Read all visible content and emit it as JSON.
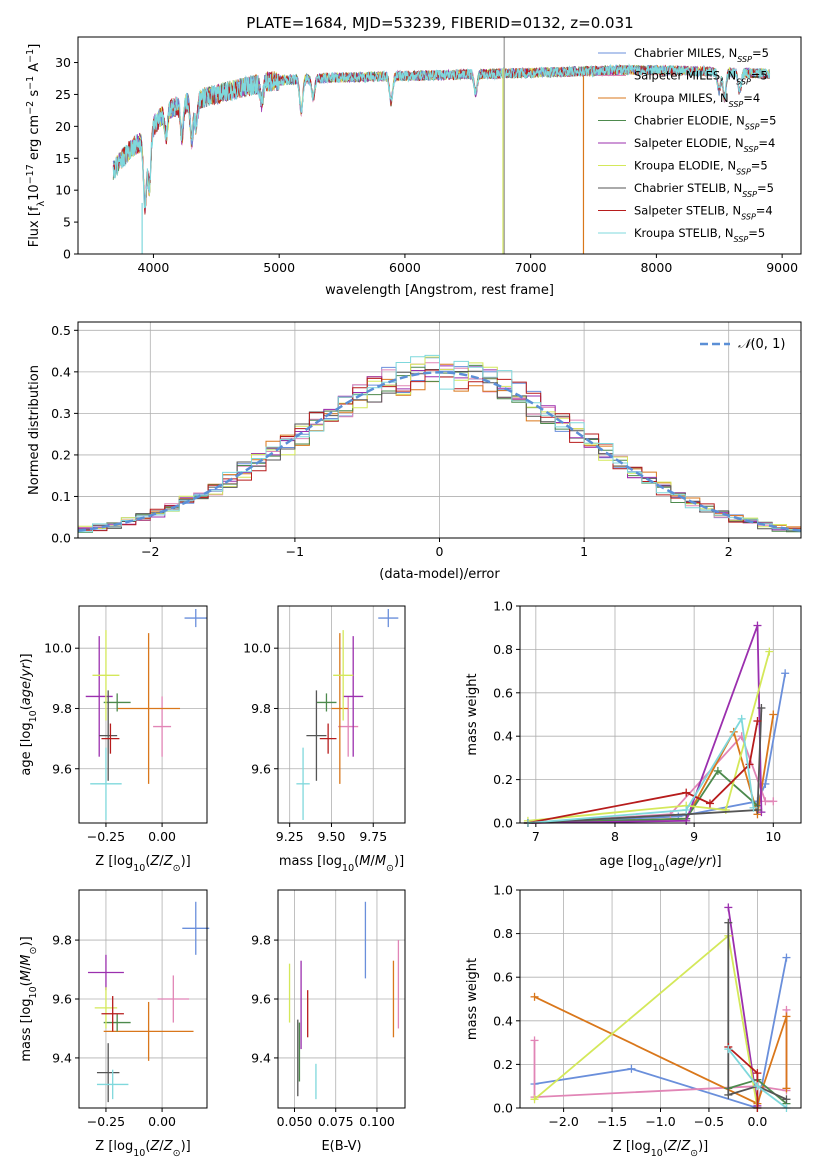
{
  "title": "PLATE=1684, MJD=53239, FIBERID=0132, z=0.031",
  "colors": {
    "chabrier_miles": "#6a8fdb",
    "salpeter_miles": "#e185b6",
    "kroupa_miles": "#d9771b",
    "chabrier_elodie": "#4d8a4d",
    "salpeter_elodie": "#9b2fae",
    "kroupa_elodie": "#d4e85a",
    "chabrier_stelib": "#555555",
    "salpeter_stelib": "#b71c1c",
    "kroupa_stelib": "#7fd8dc"
  },
  "chart_data": [
    {
      "id": "spectrum",
      "type": "line",
      "title": "PLATE=1684, MJD=53239, FIBERID=0132, z=0.031",
      "xlabel": "wavelength [Angstrom, rest frame]",
      "ylabel": "Flux [f",
      "xlim": [
        3400,
        9150
      ],
      "ylim": [
        0,
        34
      ],
      "xticks": [
        "4000",
        "5000",
        "6000",
        "7000",
        "8000",
        "9000"
      ],
      "yticks": [
        "0",
        "5",
        "10",
        "15",
        "20",
        "25",
        "30"
      ],
      "grid": false,
      "legend": "top-right",
      "legend_entries": [
        {
          "model": "Chabrier MILES",
          "n": "5",
          "color_key": "chabrier_miles"
        },
        {
          "model": "Salpeter MILES",
          "n": "5",
          "color_key": "salpeter_miles"
        },
        {
          "model": "Kroupa MILES",
          "n": "4",
          "color_key": "kroupa_miles"
        },
        {
          "model": "Chabrier ELODIE",
          "n": "5",
          "color_key": "chabrier_elodie"
        },
        {
          "model": "Salpeter ELODIE",
          "n": "4",
          "color_key": "salpeter_elodie"
        },
        {
          "model": "Kroupa ELODIE",
          "n": "5",
          "color_key": "kroupa_elodie"
        },
        {
          "model": "Chabrier STELIB",
          "n": "5",
          "color_key": "chabrier_stelib"
        },
        {
          "model": "Salpeter STELIB",
          "n": "4",
          "color_key": "salpeter_stelib"
        },
        {
          "model": "Kroupa STELIB",
          "n": "5",
          "color_key": "kroupa_stelib"
        }
      ],
      "continuum": [
        [
          3680,
          13
        ],
        [
          3750,
          15
        ],
        [
          3850,
          17
        ],
        [
          3950,
          18
        ],
        [
          4000,
          20
        ],
        [
          4100,
          22.5
        ],
        [
          4300,
          24
        ],
        [
          4500,
          25
        ],
        [
          4700,
          26
        ],
        [
          4900,
          27
        ],
        [
          5100,
          27.3
        ],
        [
          5400,
          27.6
        ],
        [
          5800,
          27.8
        ],
        [
          6200,
          28
        ],
        [
          6600,
          28.2
        ],
        [
          7000,
          28.4
        ],
        [
          7400,
          28.6
        ],
        [
          7700,
          28.8
        ],
        [
          8000,
          28.8
        ],
        [
          8400,
          28.6
        ],
        [
          8800,
          28.3
        ],
        [
          8900,
          28.2
        ]
      ],
      "features": [
        [
          3933,
          -10
        ],
        [
          3968,
          -8
        ],
        [
          4101,
          -4
        ],
        [
          4227,
          -5
        ],
        [
          4304,
          -6
        ],
        [
          4340,
          -4
        ],
        [
          4861,
          -3
        ],
        [
          5175,
          -5
        ],
        [
          5270,
          -3
        ],
        [
          5890,
          -4
        ],
        [
          6563,
          -3
        ],
        [
          8498,
          -3
        ],
        [
          8542,
          -4
        ],
        [
          8662,
          -3
        ]
      ]
    },
    {
      "id": "residual-histogram",
      "type": "line",
      "xlabel": "(data-model)/error",
      "ylabel": "Normed distribution",
      "xlim": [
        -2.5,
        2.5
      ],
      "ylim": [
        0,
        0.52
      ],
      "xticks": [
        "-2",
        "-1",
        "0",
        "1",
        "2"
      ],
      "yticks": [
        "0.0",
        "0.1",
        "0.2",
        "0.3",
        "0.4",
        "0.5"
      ],
      "grid": true,
      "legend": "top-right",
      "legend_label": "N(0,1)",
      "bin_width": 0.1
    },
    {
      "id": "age-vs-Z",
      "type": "scatter",
      "xlabel": "Z [log10(Z/Z⊙)]",
      "ylabel": "age  [log10(age/yr)]",
      "xlim": [
        -0.37,
        0.2
      ],
      "ylim": [
        9.42,
        10.14
      ],
      "xticks": [
        "-0.25",
        "0.00"
      ],
      "yticks": [
        "9.6",
        "9.8",
        "10.0"
      ],
      "grid": true,
      "points": [
        {
          "color_key": "chabrier_miles",
          "x": 0.15,
          "y": 10.1,
          "xerr": 0.05,
          "yerr": 0.03
        },
        {
          "color_key": "salpeter_miles",
          "x": 0.0,
          "y": 9.74,
          "xerr": 0.04,
          "yerr": 0.1
        },
        {
          "color_key": "kroupa_miles",
          "x": -0.06,
          "y": 9.8,
          "xerr": 0.14,
          "yerr": 0.25
        },
        {
          "color_key": "chabrier_elodie",
          "x": -0.2,
          "y": 9.82,
          "xerr": 0.06,
          "yerr": 0.03
        },
        {
          "color_key": "salpeter_elodie",
          "x": -0.28,
          "y": 9.84,
          "xerr": 0.06,
          "yerr": 0.2
        },
        {
          "color_key": "kroupa_elodie",
          "x": -0.25,
          "y": 9.91,
          "xerr": 0.06,
          "yerr": 0.15
        },
        {
          "color_key": "chabrier_stelib",
          "x": -0.24,
          "y": 9.71,
          "xerr": 0.04,
          "yerr": 0.15
        },
        {
          "color_key": "salpeter_stelib",
          "x": -0.23,
          "y": 9.7,
          "xerr": 0.04,
          "yerr": 0.05
        },
        {
          "color_key": "kroupa_stelib",
          "x": -0.25,
          "y": 9.55,
          "xerr": 0.07,
          "yerr": 0.12
        }
      ]
    },
    {
      "id": "age-vs-mass",
      "type": "scatter",
      "xlabel": "mass [log10(M/M⊙)]",
      "ylabel": "",
      "xlim": [
        9.18,
        9.94
      ],
      "ylim": [
        9.42,
        10.14
      ],
      "xticks": [
        "9.25",
        "9.50",
        "9.75"
      ],
      "yticks": [
        "9.6",
        "9.8",
        "10.0"
      ],
      "grid": true,
      "points": [
        {
          "color_key": "chabrier_miles",
          "x": 9.84,
          "y": 10.1,
          "xerr": 0.06,
          "yerr": 0.03
        },
        {
          "color_key": "salpeter_miles",
          "x": 9.6,
          "y": 9.74,
          "xerr": 0.06,
          "yerr": 0.1
        },
        {
          "color_key": "kroupa_miles",
          "x": 9.55,
          "y": 9.8,
          "xerr": 0.05,
          "yerr": 0.25
        },
        {
          "color_key": "chabrier_elodie",
          "x": 9.47,
          "y": 9.82,
          "xerr": 0.06,
          "yerr": 0.03
        },
        {
          "color_key": "salpeter_elodie",
          "x": 9.63,
          "y": 9.84,
          "xerr": 0.06,
          "yerr": 0.2
        },
        {
          "color_key": "kroupa_elodie",
          "x": 9.57,
          "y": 9.91,
          "xerr": 0.06,
          "yerr": 0.15
        },
        {
          "color_key": "chabrier_stelib",
          "x": 9.41,
          "y": 9.71,
          "xerr": 0.06,
          "yerr": 0.15
        },
        {
          "color_key": "salpeter_stelib",
          "x": 9.48,
          "y": 9.7,
          "xerr": 0.05,
          "yerr": 0.05
        },
        {
          "color_key": "kroupa_stelib",
          "x": 9.33,
          "y": 9.55,
          "xerr": 0.04,
          "yerr": 0.12
        }
      ]
    },
    {
      "id": "mass-weight-vs-age",
      "type": "line",
      "xlabel": "age  [log10(age/yr)]",
      "ylabel": "mass weight",
      "xlim": [
        6.8,
        10.35
      ],
      "ylim": [
        0,
        1
      ],
      "xticks": [
        "7",
        "8",
        "9",
        "10"
      ],
      "yticks": [
        "0.0",
        "0.2",
        "0.4",
        "0.6",
        "0.8",
        "1.0"
      ],
      "grid": true,
      "series": [
        {
          "color_key": "chabrier_miles",
          "x": [
            6.9,
            8.8,
            9.8,
            9.9,
            10.15
          ],
          "y": [
            0.0,
            0.03,
            0.1,
            0.18,
            0.69
          ]
        },
        {
          "color_key": "salpeter_miles",
          "x": [
            6.9,
            8.7,
            9.6,
            9.9,
            10.0
          ],
          "y": [
            0.0,
            0.04,
            0.4,
            0.1,
            0.1
          ]
        },
        {
          "color_key": "kroupa_miles",
          "x": 6.9,
          "y": 0,
          "x_list": [
            6.9,
            8.9,
            9.5,
            9.8,
            10.0
          ],
          "y_list": [
            0.0,
            0.02,
            0.42,
            0.04,
            0.5
          ]
        },
        {
          "color_key": "chabrier_elodie",
          "x": [
            6.9,
            8.9,
            9.3,
            9.8
          ],
          "y": [
            0.0,
            0.02,
            0.24,
            0.08
          ]
        },
        {
          "color_key": "salpeter_elodie",
          "x": [
            6.9,
            8.9,
            9.8,
            9.85
          ],
          "y": [
            0.0,
            0.01,
            0.91,
            0.05
          ]
        },
        {
          "color_key": "kroupa_elodie",
          "x": [
            6.9,
            8.9,
            9.4,
            9.95
          ],
          "y": [
            0.01,
            0.08,
            0.06,
            0.79
          ]
        },
        {
          "color_key": "chabrier_stelib",
          "x": [
            6.9,
            8.9,
            9.8,
            9.85
          ],
          "y": [
            0.0,
            0.04,
            0.06,
            0.53
          ]
        },
        {
          "color_key": "salpeter_stelib",
          "x": [
            6.9,
            8.9,
            9.2,
            9.7,
            9.8
          ],
          "y": [
            0.0,
            0.14,
            0.09,
            0.27,
            0.47
          ]
        },
        {
          "color_key": "kroupa_stelib",
          "x": [
            6.9,
            8.9,
            9.6,
            9.75
          ],
          "y": [
            0.0,
            0.06,
            0.48,
            0.07
          ]
        }
      ]
    },
    {
      "id": "mass-vs-Z",
      "type": "scatter",
      "xlabel": "Z [log10(Z/Z⊙)]",
      "ylabel": "mass [log10(M/M⊙)]",
      "xlim": [
        -0.37,
        0.2
      ],
      "ylim": [
        9.23,
        9.97
      ],
      "xticks": [
        "-0.25",
        "0.00"
      ],
      "yticks": [
        "9.4",
        "9.6",
        "9.8"
      ],
      "grid": true,
      "points": [
        {
          "color_key": "chabrier_miles",
          "x": 0.15,
          "y": 9.84,
          "xerr": 0.06,
          "yerr": 0.09
        },
        {
          "color_key": "salpeter_miles",
          "x": 0.05,
          "y": 9.6,
          "xerr": 0.07,
          "yerr": 0.08
        },
        {
          "color_key": "kroupa_miles",
          "x": -0.06,
          "y": 9.49,
          "xerr": 0.2,
          "yerr": 0.1
        },
        {
          "color_key": "chabrier_elodie",
          "x": -0.2,
          "y": 9.52,
          "xerr": 0.06,
          "yerr": 0.03
        },
        {
          "color_key": "salpeter_elodie",
          "x": -0.25,
          "y": 9.69,
          "xerr": 0.08,
          "yerr": 0.06
        },
        {
          "color_key": "kroupa_elodie",
          "x": -0.25,
          "y": 9.57,
          "xerr": 0.05,
          "yerr": 0.07
        },
        {
          "color_key": "chabrier_stelib",
          "x": -0.24,
          "y": 9.35,
          "xerr": 0.05,
          "yerr": 0.1
        },
        {
          "color_key": "salpeter_stelib",
          "x": -0.22,
          "y": 9.55,
          "xerr": 0.05,
          "yerr": 0.06
        },
        {
          "color_key": "kroupa_stelib",
          "x": -0.22,
          "y": 9.31,
          "xerr": 0.07,
          "yerr": 0.05
        }
      ]
    },
    {
      "id": "mass-vs-ebv",
      "type": "scatter",
      "xlabel": "E(B-V)",
      "ylabel": "",
      "xlim": [
        0.04,
        0.117
      ],
      "ylim": [
        9.23,
        9.97
      ],
      "xticks": [
        "0.050",
        "0.075",
        "0.100"
      ],
      "yticks": [
        "9.4",
        "9.6",
        "9.8"
      ],
      "grid": true,
      "points": [
        {
          "color_key": "chabrier_miles",
          "x": 0.093,
          "y": 9.8,
          "xerr": 0.0,
          "yerr": 0.13
        },
        {
          "color_key": "salpeter_miles",
          "x": 0.113,
          "y": 9.65,
          "xerr": 0.0,
          "yerr": 0.15
        },
        {
          "color_key": "kroupa_miles",
          "x": 0.11,
          "y": 9.6,
          "xerr": 0.0,
          "yerr": 0.13
        },
        {
          "color_key": "chabrier_elodie",
          "x": 0.053,
          "y": 9.42,
          "xerr": 0.0,
          "yerr": 0.1
        },
        {
          "color_key": "salpeter_elodie",
          "x": 0.054,
          "y": 9.58,
          "xerr": 0.0,
          "yerr": 0.15
        },
        {
          "color_key": "kroupa_elodie",
          "x": 0.047,
          "y": 9.62,
          "xerr": 0.0,
          "yerr": 0.1
        },
        {
          "color_key": "chabrier_stelib",
          "x": 0.052,
          "y": 9.4,
          "xerr": 0.0,
          "yerr": 0.13
        },
        {
          "color_key": "salpeter_stelib",
          "x": 0.058,
          "y": 9.55,
          "xerr": 0.0,
          "yerr": 0.08
        },
        {
          "color_key": "kroupa_stelib",
          "x": 0.063,
          "y": 9.32,
          "xerr": 0.0,
          "yerr": 0.06
        }
      ]
    },
    {
      "id": "mass-weight-vs-Z",
      "type": "line",
      "xlabel": "Z [log10(Z/Z⊙)]",
      "ylabel": "mass weight",
      "xlim": [
        -2.45,
        0.45
      ],
      "ylim": [
        0,
        1
      ],
      "xticks": [
        "-2.0",
        "-1.5",
        "-1.0",
        "-0.5",
        "0.0"
      ],
      "yticks": [
        "0.0",
        "0.2",
        "0.4",
        "0.6",
        "0.8",
        "1.0"
      ],
      "grid": true,
      "series": [
        {
          "color_key": "chabrier_miles",
          "x": [
            -2.3,
            -1.3,
            0.0,
            0.3
          ],
          "y": [
            0.11,
            0.18,
            0.0,
            0.69
          ]
        },
        {
          "color_key": "salpeter_miles",
          "x": [
            -2.3,
            -2.3,
            0.0,
            0.3,
            0.3
          ],
          "y": [
            0.31,
            0.05,
            0.1,
            0.08,
            0.45
          ]
        },
        {
          "color_key": "kroupa_miles",
          "x": [
            -2.3,
            0.0,
            0.3,
            0.3
          ],
          "y": [
            0.51,
            0.02,
            0.42,
            0.09
          ]
        },
        {
          "color_key": "chabrier_elodie",
          "x": [
            -0.3,
            0.0,
            0.3
          ],
          "y": [
            0.09,
            0.13,
            0.02
          ]
        },
        {
          "color_key": "salpeter_elodie",
          "x": [
            -0.3,
            0.0
          ],
          "y": [
            0.92,
            0.01
          ]
        },
        {
          "color_key": "kroupa_elodie",
          "x": [
            -2.3,
            -0.3,
            0.0
          ],
          "y": [
            0.04,
            0.79,
            0.0
          ]
        },
        {
          "color_key": "chabrier_stelib",
          "x": [
            -0.3,
            -0.3,
            0.0,
            0.3
          ],
          "y": [
            0.85,
            0.06,
            0.1,
            0.04
          ]
        },
        {
          "color_key": "salpeter_stelib",
          "x": [
            -0.3,
            0.0,
            0.0
          ],
          "y": [
            0.28,
            0.16,
            0.0
          ]
        },
        {
          "color_key": "kroupa_stelib",
          "x": [
            -0.3,
            0.0,
            0.3
          ],
          "y": [
            0.27,
            0.1,
            0.0
          ]
        }
      ]
    }
  ]
}
